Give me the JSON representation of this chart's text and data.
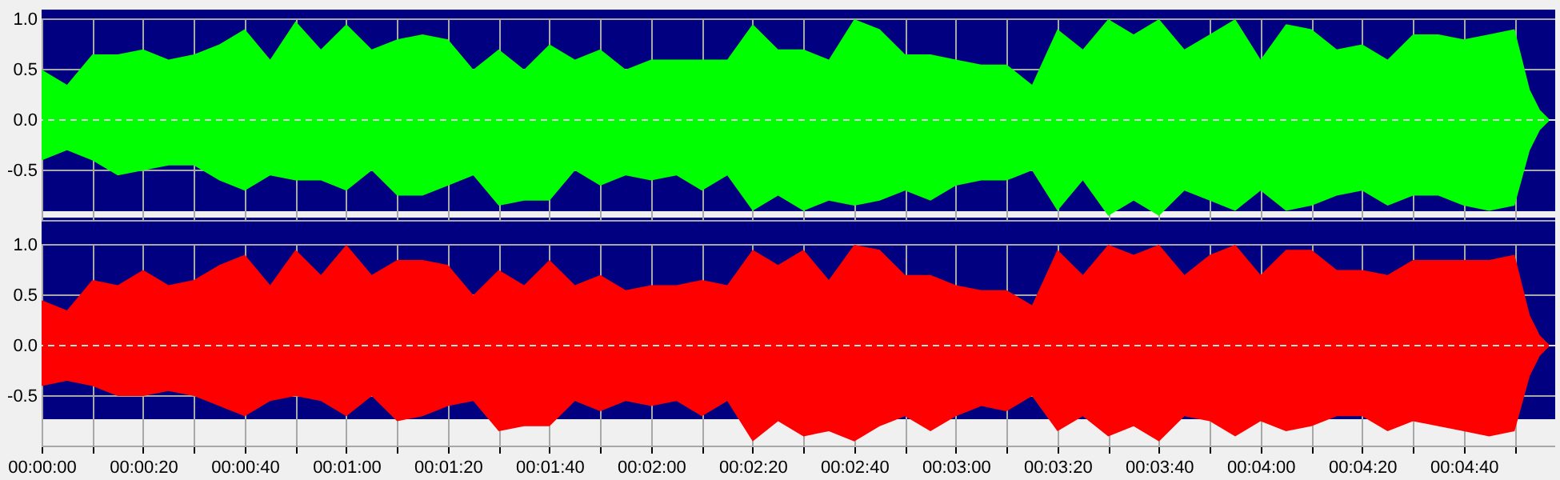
{
  "chart_data": [
    {
      "type": "area",
      "tick_labels": "y",
      "grid": true,
      "xlim": [
        0,
        298
      ],
      "ylim": [
        -1,
        1
      ],
      "xticks": [
        {
          "value": 0,
          "label": null
        },
        {
          "value": 10,
          "label": null
        },
        {
          "value": 20,
          "label": null
        },
        {
          "value": 30,
          "label": null
        },
        {
          "value": 40,
          "label": null
        },
        {
          "value": 50,
          "label": null
        },
        {
          "value": 60,
          "label": null
        },
        {
          "value": 70,
          "label": null
        },
        {
          "value": 80,
          "label": null
        },
        {
          "value": 90,
          "label": null
        },
        {
          "value": 100,
          "label": null
        },
        {
          "value": 110,
          "label": null
        },
        {
          "value": 120,
          "label": null
        },
        {
          "value": 130,
          "label": null
        },
        {
          "value": 140,
          "label": null
        },
        {
          "value": 150,
          "label": null
        },
        {
          "value": 160,
          "label": null
        },
        {
          "value": 170,
          "label": null
        },
        {
          "value": 180,
          "label": null
        },
        {
          "value": 190,
          "label": null
        },
        {
          "value": 200,
          "label": null
        },
        {
          "value": 210,
          "label": null
        },
        {
          "value": 220,
          "label": null
        },
        {
          "value": 230,
          "label": null
        },
        {
          "value": 240,
          "label": null
        },
        {
          "value": 250,
          "label": null
        },
        {
          "value": 260,
          "label": null
        },
        {
          "value": 270,
          "label": null
        },
        {
          "value": 280,
          "label": null
        },
        {
          "value": 290,
          "label": null
        }
      ],
      "yticks": [
        {
          "value": 1,
          "label": "1.0"
        },
        {
          "value": 0.5,
          "label": "0.5"
        },
        {
          "value": 0,
          "label": "0.0"
        },
        {
          "value": -0.5,
          "label": "-0.5"
        },
        {
          "value": -1,
          "label": null
        }
      ],
      "ref_lines": [
        {
          "axis": "y",
          "value": 0,
          "color": "#e0e0e0",
          "line_style": "dashed"
        }
      ],
      "x": [
        0,
        5,
        10,
        15,
        20,
        25,
        30,
        35,
        40,
        45,
        50,
        55,
        60,
        65,
        70,
        75,
        80,
        85,
        90,
        95,
        100,
        105,
        110,
        115,
        120,
        125,
        130,
        135,
        140,
        145,
        150,
        155,
        160,
        165,
        170,
        175,
        180,
        185,
        190,
        195,
        200,
        205,
        210,
        215,
        220,
        225,
        230,
        235,
        240,
        245,
        250,
        255,
        260,
        265,
        270,
        275,
        280,
        285,
        290,
        293,
        295,
        297
      ],
      "series": [
        {
          "color": "#00ff00",
          "values": [
            0.5,
            0.35,
            0.65,
            0.65,
            0.7,
            0.6,
            0.65,
            0.75,
            0.9,
            0.6,
            0.98,
            0.7,
            0.95,
            0.7,
            0.8,
            0.85,
            0.8,
            0.5,
            0.7,
            0.5,
            0.75,
            0.6,
            0.7,
            0.5,
            0.6,
            0.6,
            0.6,
            0.6,
            0.95,
            0.7,
            0.7,
            0.6,
            1.0,
            0.9,
            0.65,
            0.65,
            0.6,
            0.55,
            0.55,
            0.35,
            0.9,
            0.7,
            1.0,
            0.85,
            1.0,
            0.7,
            0.85,
            1.0,
            0.6,
            0.95,
            0.9,
            0.7,
            0.75,
            0.6,
            0.85,
            0.85,
            0.8,
            0.85,
            0.9,
            0.3,
            0.1,
            0
          ]
        },
        {
          "color": "#00ff00",
          "values": [
            -0.4,
            -0.3,
            -0.4,
            -0.55,
            -0.5,
            -0.45,
            -0.45,
            -0.6,
            -0.7,
            -0.55,
            -0.6,
            -0.6,
            -0.7,
            -0.5,
            -0.75,
            -0.75,
            -0.65,
            -0.55,
            -0.85,
            -0.8,
            -0.8,
            -0.5,
            -0.65,
            -0.55,
            -0.6,
            -0.55,
            -0.7,
            -0.55,
            -0.9,
            -0.75,
            -0.9,
            -0.8,
            -0.85,
            -0.8,
            -0.7,
            -0.8,
            -0.65,
            -0.6,
            -0.6,
            -0.5,
            -0.9,
            -0.6,
            -0.95,
            -0.8,
            -0.95,
            -0.7,
            -0.8,
            -0.9,
            -0.7,
            -0.9,
            -0.85,
            -0.75,
            -0.7,
            -0.85,
            -0.75,
            -0.75,
            -0.85,
            -0.9,
            -0.85,
            -0.3,
            -0.1,
            0
          ]
        }
      ]
    },
    {
      "type": "area",
      "grid": true,
      "xlim": [
        0,
        298
      ],
      "ylim": [
        -1,
        1
      ],
      "xticks": [
        {
          "value": 0,
          "label": "00:00:00"
        },
        {
          "value": 10,
          "label": null
        },
        {
          "value": 20,
          "label": "00:00:20"
        },
        {
          "value": 30,
          "label": null
        },
        {
          "value": 40,
          "label": "00:00:40"
        },
        {
          "value": 50,
          "label": null
        },
        {
          "value": 60,
          "label": "00:01:00"
        },
        {
          "value": 70,
          "label": null
        },
        {
          "value": 80,
          "label": "00:01:20"
        },
        {
          "value": 90,
          "label": null
        },
        {
          "value": 100,
          "label": "00:01:40"
        },
        {
          "value": 110,
          "label": null
        },
        {
          "value": 120,
          "label": "00:02:00"
        },
        {
          "value": 130,
          "label": null
        },
        {
          "value": 140,
          "label": "00:02:20"
        },
        {
          "value": 150,
          "label": null
        },
        {
          "value": 160,
          "label": "00:02:40"
        },
        {
          "value": 170,
          "label": null
        },
        {
          "value": 180,
          "label": "00:03:00"
        },
        {
          "value": 190,
          "label": null
        },
        {
          "value": 200,
          "label": "00:03:20"
        },
        {
          "value": 210,
          "label": null
        },
        {
          "value": 220,
          "label": "00:03:40"
        },
        {
          "value": 230,
          "label": null
        },
        {
          "value": 240,
          "label": "00:04:00"
        },
        {
          "value": 250,
          "label": null
        },
        {
          "value": 260,
          "label": "00:04:20"
        },
        {
          "value": 270,
          "label": null
        },
        {
          "value": 280,
          "label": "00:04:40"
        },
        {
          "value": 290,
          "label": null
        }
      ],
      "yticks": [
        {
          "value": 1,
          "label": "1.0"
        },
        {
          "value": 0.5,
          "label": "0.5"
        },
        {
          "value": 0,
          "label": "0.0"
        },
        {
          "value": -0.5,
          "label": "-0.5"
        },
        {
          "value": -1,
          "label": null
        }
      ],
      "ref_lines": [
        {
          "axis": "y",
          "value": 0,
          "color": "#e0e0e0",
          "line_style": "dashed"
        }
      ],
      "x": [
        0,
        5,
        10,
        15,
        20,
        25,
        30,
        35,
        40,
        45,
        50,
        55,
        60,
        65,
        70,
        75,
        80,
        85,
        90,
        95,
        100,
        105,
        110,
        115,
        120,
        125,
        130,
        135,
        140,
        145,
        150,
        155,
        160,
        165,
        170,
        175,
        180,
        185,
        190,
        195,
        200,
        205,
        210,
        215,
        220,
        225,
        230,
        235,
        240,
        245,
        250,
        255,
        260,
        265,
        270,
        275,
        280,
        285,
        290,
        293,
        295,
        297
      ],
      "series": [
        {
          "color": "#ff0000",
          "values": [
            0.45,
            0.35,
            0.65,
            0.6,
            0.75,
            0.6,
            0.65,
            0.8,
            0.9,
            0.6,
            0.95,
            0.7,
            1.0,
            0.7,
            0.85,
            0.85,
            0.8,
            0.5,
            0.75,
            0.6,
            0.85,
            0.6,
            0.7,
            0.55,
            0.6,
            0.6,
            0.65,
            0.6,
            0.95,
            0.8,
            0.95,
            0.65,
            1.0,
            0.95,
            0.7,
            0.7,
            0.6,
            0.55,
            0.55,
            0.4,
            0.95,
            0.7,
            1.0,
            0.9,
            1.0,
            0.7,
            0.9,
            1.0,
            0.7,
            0.95,
            0.95,
            0.75,
            0.75,
            0.7,
            0.85,
            0.85,
            0.85,
            0.85,
            0.9,
            0.3,
            0.1,
            0
          ]
        },
        {
          "color": "#ff0000",
          "values": [
            -0.4,
            -0.35,
            -0.4,
            -0.5,
            -0.5,
            -0.45,
            -0.5,
            -0.6,
            -0.7,
            -0.55,
            -0.5,
            -0.55,
            -0.7,
            -0.5,
            -0.75,
            -0.7,
            -0.6,
            -0.55,
            -0.85,
            -0.8,
            -0.8,
            -0.55,
            -0.65,
            -0.55,
            -0.6,
            -0.55,
            -0.7,
            -0.55,
            -0.95,
            -0.75,
            -0.9,
            -0.85,
            -0.95,
            -0.8,
            -0.7,
            -0.85,
            -0.7,
            -0.6,
            -0.65,
            -0.5,
            -0.85,
            -0.7,
            -0.9,
            -0.8,
            -0.95,
            -0.7,
            -0.75,
            -0.9,
            -0.75,
            -0.85,
            -0.8,
            -0.7,
            -0.7,
            -0.85,
            -0.75,
            -0.8,
            -0.85,
            -0.9,
            -0.85,
            -0.3,
            -0.1,
            0
          ]
        }
      ]
    }
  ]
}
